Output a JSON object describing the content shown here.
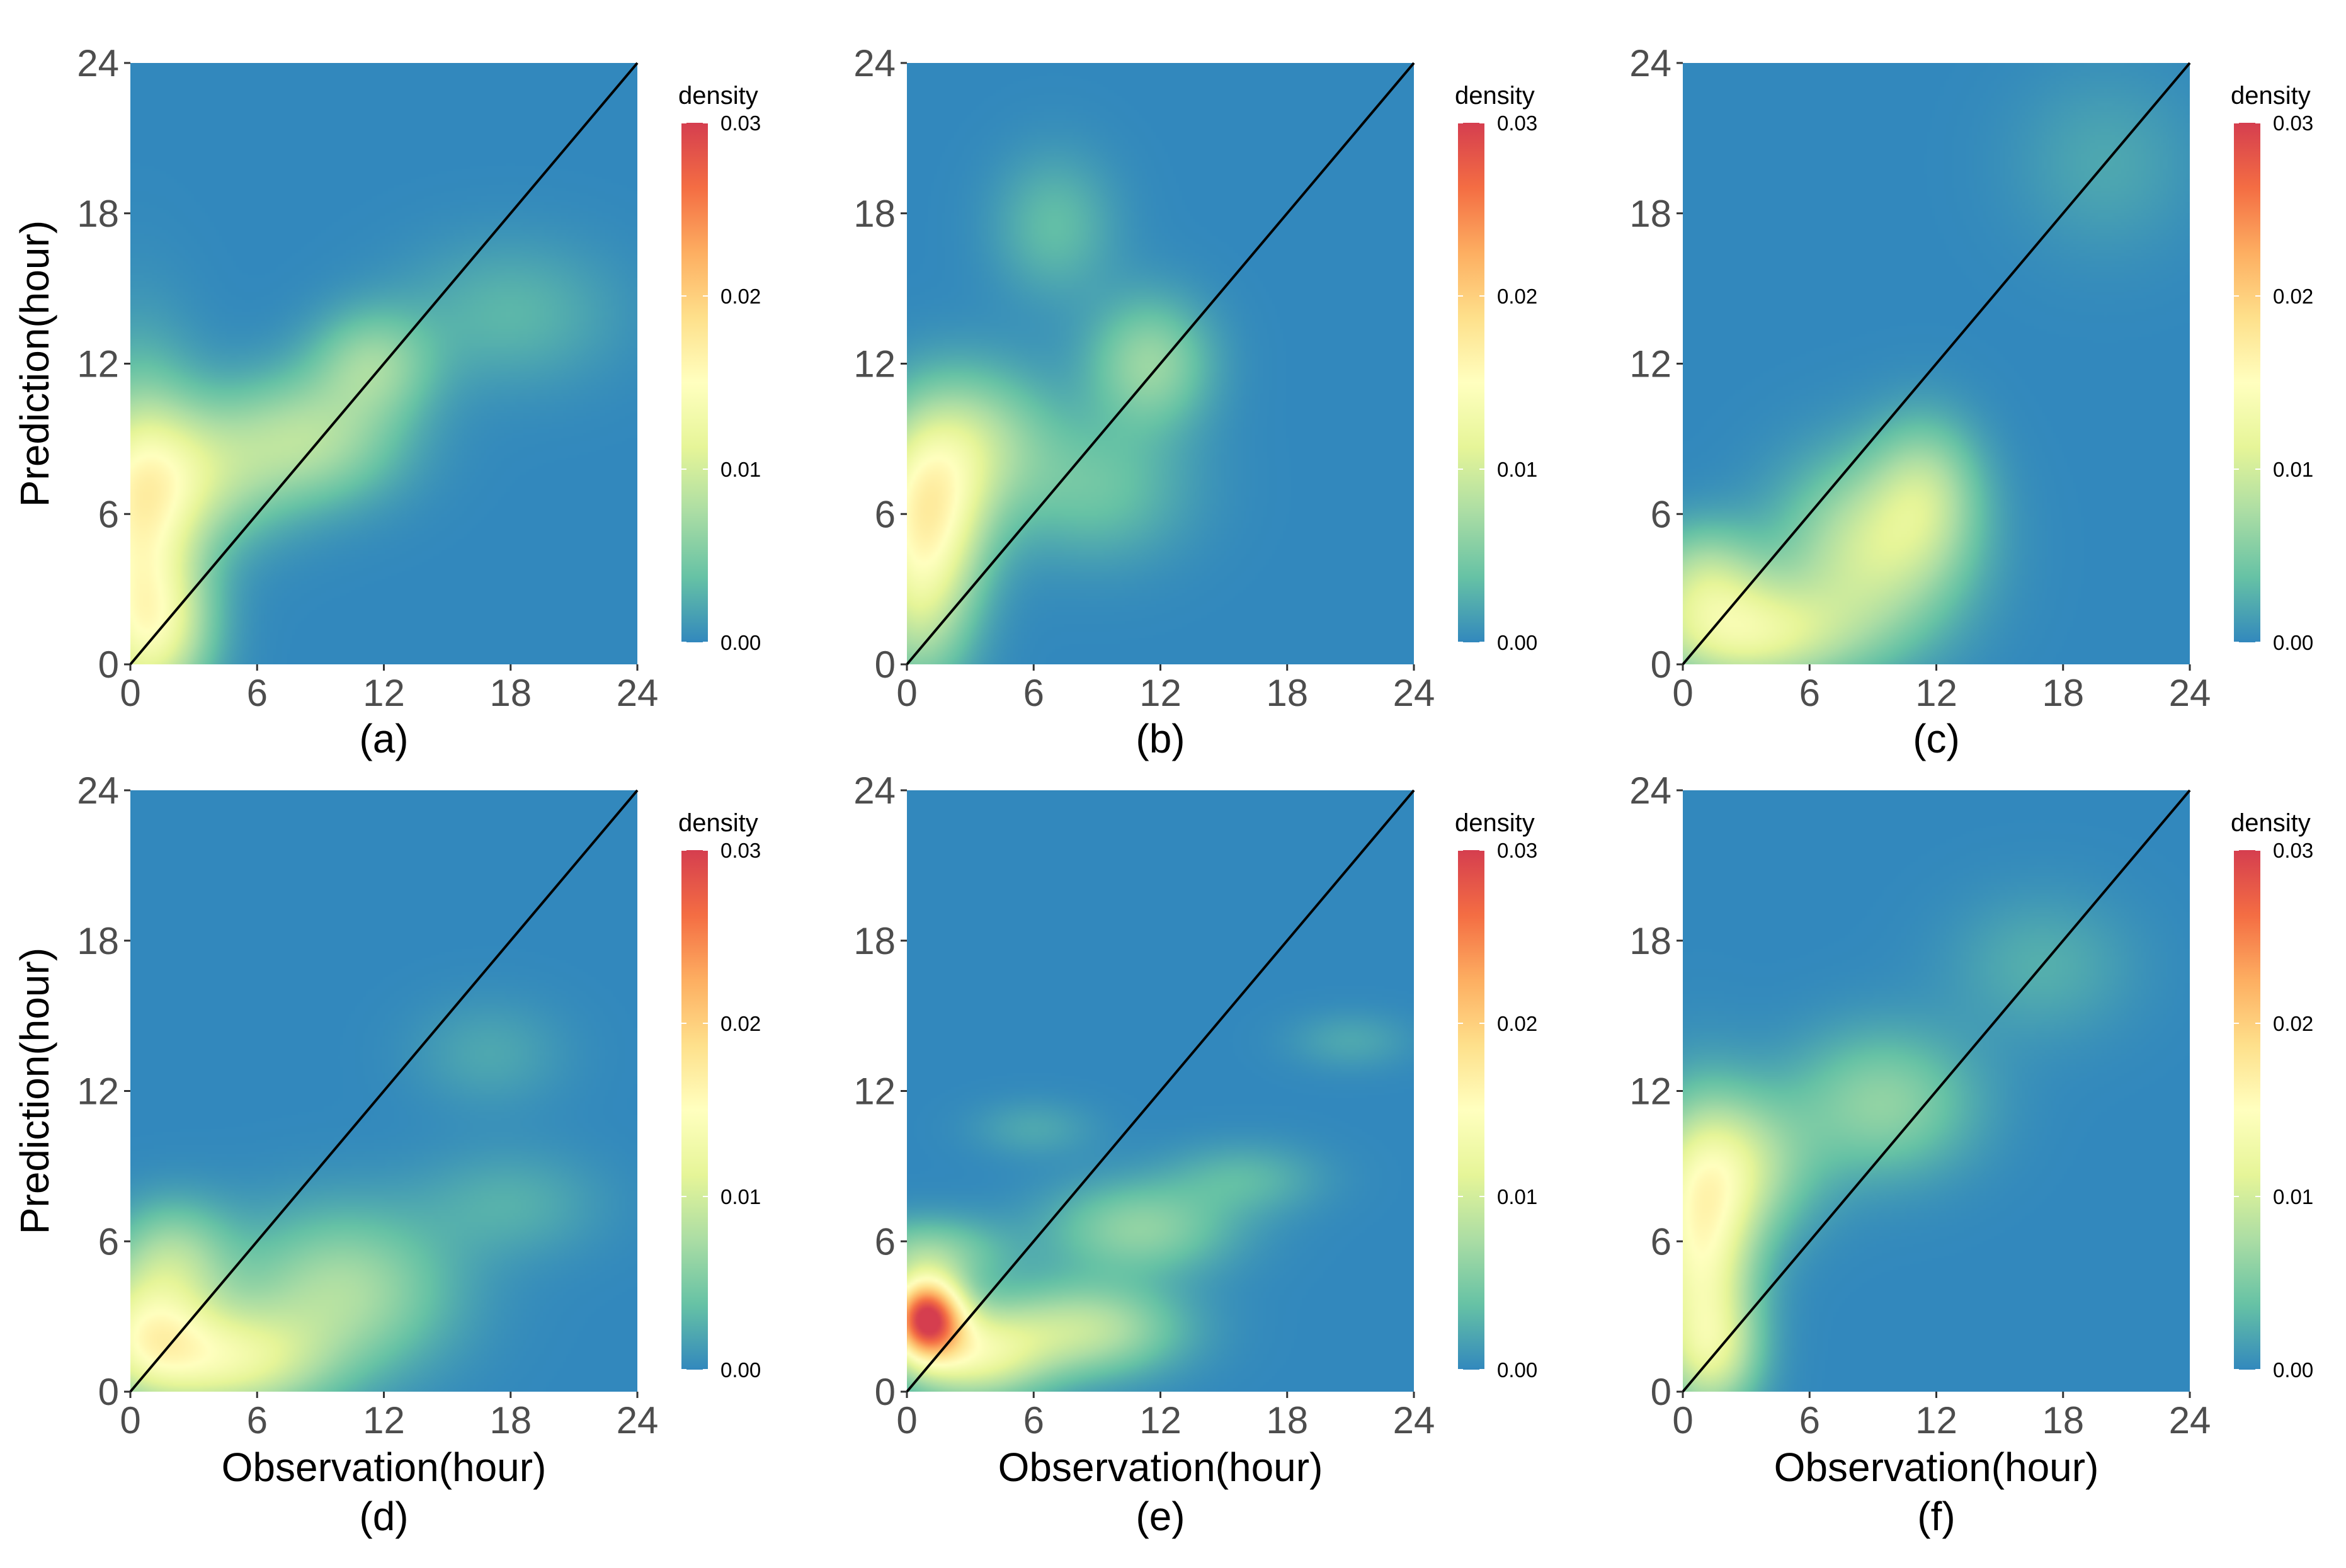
{
  "chart_data": [
    {
      "panel_label": "(a)",
      "type": "heatmap",
      "title": "",
      "xlabel": "",
      "ylabel": "Prediction(hour)",
      "xlim": [
        0,
        24
      ],
      "ylim": [
        0,
        24
      ],
      "x_ticks": [
        "0",
        "6",
        "12",
        "18",
        "24"
      ],
      "y_ticks": [
        "0",
        "6",
        "12",
        "18",
        "24"
      ],
      "reference_line": {
        "from": [
          0,
          0
        ],
        "to": [
          24,
          24
        ]
      },
      "density_peaks": [
        {
          "x": 0.3,
          "y": 4.5,
          "sx": 2.0,
          "sy": 4.5,
          "density": 0.0125
        },
        {
          "x": 2.5,
          "y": 7.5,
          "sx": 3.0,
          "sy": 2.0,
          "density": 0.008
        },
        {
          "x": 8.5,
          "y": 9.0,
          "sx": 3.0,
          "sy": 1.8,
          "density": 0.0075
        },
        {
          "x": 11.5,
          "y": 12.0,
          "sx": 2.0,
          "sy": 1.5,
          "density": 0.006
        },
        {
          "x": 1.5,
          "y": 1.5,
          "sx": 1.8,
          "sy": 1.8,
          "density": 0.006
        },
        {
          "x": 18.0,
          "y": 14.0,
          "sx": 3.5,
          "sy": 2.0,
          "density": 0.003
        }
      ],
      "legend": {
        "title": "density",
        "ticks": [
          "0.03",
          "0.02",
          "0.01",
          "0.00"
        ],
        "range": [
          0,
          0.03
        ]
      }
    },
    {
      "panel_label": "(b)",
      "type": "heatmap",
      "title": "",
      "xlabel": "",
      "ylabel": "",
      "xlim": [
        0,
        24
      ],
      "ylim": [
        0,
        24
      ],
      "x_ticks": [
        "0",
        "6",
        "12",
        "18",
        "24"
      ],
      "y_ticks": [
        "0",
        "6",
        "12",
        "18",
        "24"
      ],
      "reference_line": {
        "from": [
          0,
          0
        ],
        "to": [
          24,
          24
        ]
      },
      "density_peaks": [
        {
          "x": 1.0,
          "y": 6.5,
          "sx": 2.0,
          "sy": 2.5,
          "density": 0.0135
        },
        {
          "x": 0.5,
          "y": 2.5,
          "sx": 1.8,
          "sy": 2.5,
          "density": 0.008
        },
        {
          "x": 3.5,
          "y": 9.0,
          "sx": 2.5,
          "sy": 2.0,
          "density": 0.006
        },
        {
          "x": 11.5,
          "y": 12.0,
          "sx": 2.0,
          "sy": 1.8,
          "density": 0.0065
        },
        {
          "x": 7.0,
          "y": 17.5,
          "sx": 2.0,
          "sy": 2.0,
          "density": 0.0035
        },
        {
          "x": 9.0,
          "y": 7.0,
          "sx": 3.0,
          "sy": 2.0,
          "density": 0.004
        }
      ],
      "legend": {
        "title": "density",
        "ticks": [
          "0.03",
          "0.02",
          "0.01",
          "0.00"
        ],
        "range": [
          0,
          0.03
        ]
      }
    },
    {
      "panel_label": "(c)",
      "type": "heatmap",
      "title": "",
      "xlabel": "",
      "ylabel": "",
      "xlim": [
        0,
        24
      ],
      "ylim": [
        0,
        24
      ],
      "x_ticks": [
        "0",
        "6",
        "12",
        "18",
        "24"
      ],
      "y_ticks": [
        "0",
        "6",
        "12",
        "18",
        "24"
      ],
      "reference_line": {
        "from": [
          0,
          0
        ],
        "to": [
          24,
          24
        ]
      },
      "density_peaks": [
        {
          "x": 3.0,
          "y": 1.2,
          "sx": 3.5,
          "sy": 1.5,
          "density": 0.0115
        },
        {
          "x": 9.0,
          "y": 4.5,
          "sx": 3.0,
          "sy": 2.5,
          "density": 0.0095
        },
        {
          "x": 1.0,
          "y": 3.5,
          "sx": 2.0,
          "sy": 1.5,
          "density": 0.007
        },
        {
          "x": 11.5,
          "y": 7.0,
          "sx": 1.8,
          "sy": 2.0,
          "density": 0.006
        },
        {
          "x": 20.0,
          "y": 20.0,
          "sx": 3.0,
          "sy": 2.5,
          "density": 0.002
        }
      ],
      "legend": {
        "title": "density",
        "ticks": [
          "0.03",
          "0.02",
          "0.01",
          "0.00"
        ],
        "range": [
          0,
          0.03
        ]
      }
    },
    {
      "panel_label": "(d)",
      "type": "heatmap",
      "title": "",
      "xlabel": "Observation(hour)",
      "ylabel": "Prediction(hour)",
      "xlim": [
        0,
        24
      ],
      "ylim": [
        0,
        24
      ],
      "x_ticks": [
        "0",
        "6",
        "12",
        "18",
        "24"
      ],
      "y_ticks": [
        "0",
        "6",
        "12",
        "18",
        "24"
      ],
      "reference_line": {
        "from": [
          0,
          0
        ],
        "to": [
          24,
          24
        ]
      },
      "density_peaks": [
        {
          "x": 0.8,
          "y": 2.3,
          "sx": 2.2,
          "sy": 1.8,
          "density": 0.0125
        },
        {
          "x": 5.0,
          "y": 1.2,
          "sx": 3.0,
          "sy": 1.5,
          "density": 0.0105
        },
        {
          "x": 10.0,
          "y": 4.0,
          "sx": 3.5,
          "sy": 2.2,
          "density": 0.0075
        },
        {
          "x": 2.0,
          "y": 5.5,
          "sx": 2.0,
          "sy": 1.5,
          "density": 0.006
        },
        {
          "x": 17.0,
          "y": 13.5,
          "sx": 2.5,
          "sy": 1.5,
          "density": 0.002
        },
        {
          "x": 18.0,
          "y": 7.5,
          "sx": 3.0,
          "sy": 1.5,
          "density": 0.0025
        }
      ],
      "legend": {
        "title": "density",
        "ticks": [
          "0.03",
          "0.02",
          "0.01",
          "0.00"
        ],
        "range": [
          0,
          0.03
        ]
      }
    },
    {
      "panel_label": "(e)",
      "type": "heatmap",
      "title": "",
      "xlabel": "Observation(hour)",
      "ylabel": "",
      "xlim": [
        0,
        24
      ],
      "ylim": [
        0,
        24
      ],
      "x_ticks": [
        "0",
        "6",
        "12",
        "18",
        "24"
      ],
      "y_ticks": [
        "0",
        "6",
        "12",
        "18",
        "24"
      ],
      "reference_line": {
        "from": [
          0,
          0
        ],
        "to": [
          24,
          24
        ]
      },
      "density_peaks": [
        {
          "x": 0.9,
          "y": 3.0,
          "sx": 1.2,
          "sy": 1.1,
          "density": 0.027
        },
        {
          "x": 3.0,
          "y": 1.5,
          "sx": 2.5,
          "sy": 1.3,
          "density": 0.012
        },
        {
          "x": 8.5,
          "y": 2.5,
          "sx": 3.0,
          "sy": 1.3,
          "density": 0.0085
        },
        {
          "x": 1.0,
          "y": 5.5,
          "sx": 2.5,
          "sy": 1.0,
          "density": 0.006
        },
        {
          "x": 11.0,
          "y": 6.5,
          "sx": 3.0,
          "sy": 1.3,
          "density": 0.006
        },
        {
          "x": 16.0,
          "y": 8.5,
          "sx": 2.5,
          "sy": 1.0,
          "density": 0.003
        },
        {
          "x": 21.0,
          "y": 14.0,
          "sx": 2.0,
          "sy": 0.8,
          "density": 0.002
        },
        {
          "x": 6.0,
          "y": 10.5,
          "sx": 2.0,
          "sy": 0.8,
          "density": 0.002
        }
      ],
      "legend": {
        "title": "density",
        "ticks": [
          "0.03",
          "0.02",
          "0.01",
          "0.00"
        ],
        "range": [
          0,
          0.03
        ]
      }
    },
    {
      "panel_label": "(f)",
      "type": "heatmap",
      "title": "",
      "xlabel": "Observation(hour)",
      "ylabel": "",
      "xlim": [
        0,
        24
      ],
      "ylim": [
        0,
        24
      ],
      "x_ticks": [
        "0",
        "6",
        "12",
        "18",
        "24"
      ],
      "y_ticks": [
        "0",
        "6",
        "12",
        "18",
        "24"
      ],
      "reference_line": {
        "from": [
          0,
          0
        ],
        "to": [
          24,
          24
        ]
      },
      "density_peaks": [
        {
          "x": 0.8,
          "y": 5.5,
          "sx": 1.8,
          "sy": 3.5,
          "density": 0.0135
        },
        {
          "x": 2.5,
          "y": 9.0,
          "sx": 2.5,
          "sy": 2.0,
          "density": 0.008
        },
        {
          "x": 9.5,
          "y": 11.5,
          "sx": 3.0,
          "sy": 2.0,
          "density": 0.006
        },
        {
          "x": 1.5,
          "y": 1.5,
          "sx": 1.5,
          "sy": 1.5,
          "density": 0.006
        },
        {
          "x": 17.0,
          "y": 17.0,
          "sx": 3.0,
          "sy": 2.0,
          "density": 0.0025
        }
      ],
      "legend": {
        "title": "density",
        "ticks": [
          "0.03",
          "0.02",
          "0.01",
          "0.00"
        ],
        "range": [
          0,
          0.03
        ]
      }
    }
  ],
  "colors": {
    "scale": [
      "#3288bd",
      "#66c2a5",
      "#abdda4",
      "#e6f598",
      "#ffffbf",
      "#fee08b",
      "#fdae61",
      "#f46d43",
      "#d53e4f"
    ],
    "reference_line": "#000000"
  }
}
